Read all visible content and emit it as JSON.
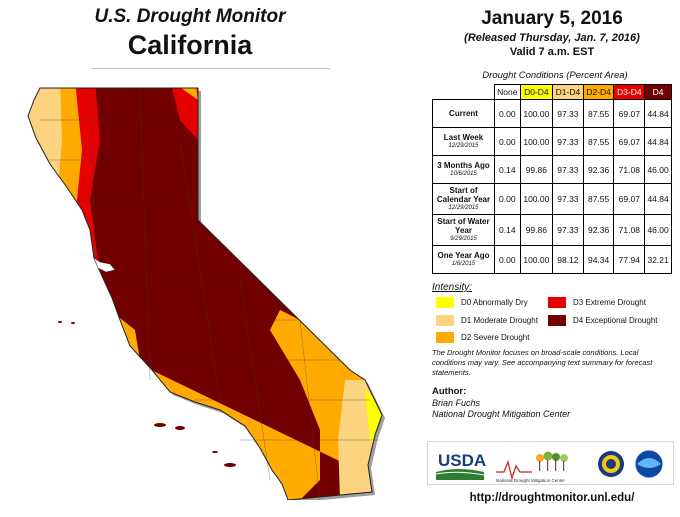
{
  "header": {
    "title": "U.S. Drought Monitor",
    "region": "California",
    "date": "January 5, 2016",
    "released": "(Released Thursday, Jan. 7, 2016)",
    "valid": "Valid 7 a.m. EST"
  },
  "table": {
    "title": "Drought Conditions (Percent Area)",
    "columns": [
      {
        "label": "None",
        "color": "#ffffff"
      },
      {
        "label": "D0-D4",
        "color": "#ffff00"
      },
      {
        "label": "D1-D4",
        "color": "#fcd37f"
      },
      {
        "label": "D2-D4",
        "color": "#ffaa00"
      },
      {
        "label": "D3-D4",
        "color": "#e60000"
      },
      {
        "label": "D4",
        "color": "#730000"
      }
    ],
    "rows": [
      {
        "label": "Current",
        "sub": "",
        "values": [
          "0.00",
          "100.00",
          "97.33",
          "87.55",
          "69.07",
          "44.84"
        ]
      },
      {
        "label": "Last Week",
        "sub": "12/29/2015",
        "values": [
          "0.00",
          "100.00",
          "97.33",
          "87.55",
          "69.07",
          "44.84"
        ]
      },
      {
        "label": "3 Months Ago",
        "sub": "10/6/2015",
        "values": [
          "0.14",
          "99.86",
          "97.33",
          "92.36",
          "71.08",
          "46.00"
        ]
      },
      {
        "label": "Start of Calendar Year",
        "sub": "12/29/2015",
        "values": [
          "0.00",
          "100.00",
          "97.33",
          "87.55",
          "69.07",
          "44.84"
        ]
      },
      {
        "label": "Start of Water Year",
        "sub": "9/29/2015",
        "values": [
          "0.14",
          "99.86",
          "97.33",
          "92.36",
          "71.08",
          "46.00"
        ]
      },
      {
        "label": "One Year Ago",
        "sub": "1/6/2015",
        "values": [
          "0.00",
          "100.00",
          "98.12",
          "94.34",
          "77.94",
          "32.21"
        ]
      }
    ]
  },
  "legend": {
    "title": "Intensity:",
    "items": [
      {
        "label": "D0 Abnormally Dry",
        "color": "#ffff00"
      },
      {
        "label": "D1 Moderate Drought",
        "color": "#fcd37f"
      },
      {
        "label": "D2 Severe Drought",
        "color": "#ffaa00"
      },
      {
        "label": "D3 Extreme Drought",
        "color": "#e60000"
      },
      {
        "label": "D4 Exceptional Drought",
        "color": "#730000"
      }
    ]
  },
  "note": "The Drought Monitor focuses on broad-scale conditions. Local conditions may vary. See accompanying text summary for forecast statements.",
  "author": {
    "heading": "Author:",
    "name": "Brian Fuchs",
    "org": "National Drought Mitigation Center"
  },
  "logos": {
    "usda": "USDA",
    "ndmc": "National Drought Mitigation Center"
  },
  "url": "http://droughtmonitor.unl.edu/"
}
